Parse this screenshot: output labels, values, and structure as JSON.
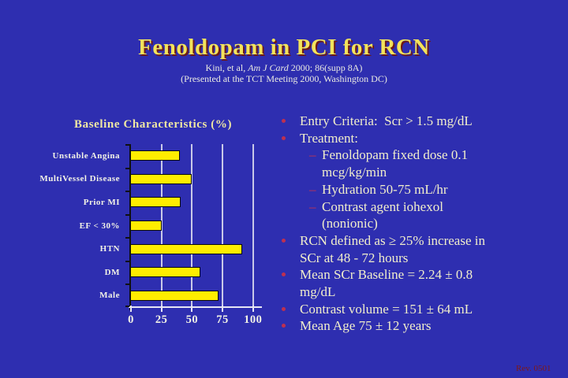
{
  "slide": {
    "background_color": "#2E2EB0",
    "title": "Fenoldopam in PCI for RCN",
    "title_color": "#F2E35C",
    "title_shadow_color": "#6E1A14",
    "citation": {
      "pre": "Kini, et al, ",
      "italic": "Am J Card",
      "post": " 2000; 86(supp 8A)",
      "line2": "(Presented at the TCT Meeting 2000, Washington DC)",
      "color": "#EAEAE2"
    },
    "footer": {
      "revision": "Rev. 0501",
      "color": "#7E1818"
    }
  },
  "chart_data": {
    "type": "bar",
    "orientation": "horizontal",
    "title": "Baseline Characteristics (%)",
    "categories": [
      "Unstable Angina",
      "MultiVessel Disease",
      "Prior MI",
      "EF < 30%",
      "HTN",
      "DM",
      "Male"
    ],
    "values": [
      40,
      50,
      41,
      25,
      91,
      57,
      72
    ],
    "xlabel": "",
    "ylabel": "",
    "xlim": [
      0,
      100
    ],
    "xticks": [
      0,
      25,
      50,
      75,
      100
    ],
    "grid": true,
    "legend": false,
    "bar_color": "#FFED00",
    "bar_border_color": "#0A0A0A",
    "gridline_color": "#C9C9E8",
    "y_axis_color": "#101010",
    "x_axis_color": "#E6E6F4",
    "tick_label_color": "#F2F2E6",
    "title_color": "#EFE7A3"
  },
  "bullets": {
    "text_color": "#F1EECB",
    "level1_marker": "•",
    "level2_marker": "–",
    "marker_color": "#BE3050",
    "items": [
      {
        "level": 1,
        "lines": [
          "Entry Criteria:  Scr > 1.5 mg/dL"
        ]
      },
      {
        "level": 1,
        "lines": [
          "Treatment:"
        ]
      },
      {
        "level": 2,
        "lines": [
          "Fenoldopam fixed dose 0.1",
          "mcg/kg/min"
        ]
      },
      {
        "level": 2,
        "lines": [
          "Hydration 50-75 mL/hr"
        ]
      },
      {
        "level": 2,
        "lines": [
          "Contrast agent iohexol",
          "(nonionic)"
        ]
      },
      {
        "level": 1,
        "lines": [
          "RCN defined as ≥ 25% increase in",
          "SCr at 48 - 72 hours"
        ]
      },
      {
        "level": 1,
        "lines": [
          "Mean SCr Baseline = 2.24 ± 0.8",
          "mg/dL"
        ]
      },
      {
        "level": 1,
        "lines": [
          "Contrast volume = 151 ± 64 mL"
        ]
      },
      {
        "level": 1,
        "lines": [
          "Mean Age 75 ± 12 years"
        ]
      }
    ]
  }
}
